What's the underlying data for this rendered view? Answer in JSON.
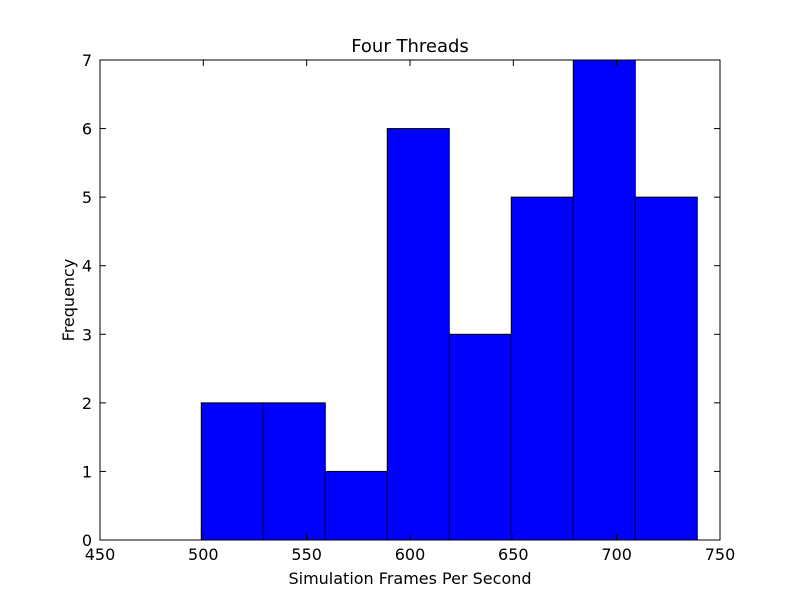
{
  "chart_data": {
    "type": "bar",
    "title": "Four Threads",
    "xlabel": "Simulation Frames Per Second",
    "ylabel": "Frequency",
    "xlim": [
      450,
      750
    ],
    "ylim": [
      0,
      7
    ],
    "xticks": [
      450,
      500,
      550,
      600,
      650,
      700,
      750
    ],
    "yticks": [
      0,
      1,
      2,
      3,
      4,
      5,
      6,
      7
    ],
    "bin_edges": [
      499,
      529,
      559,
      589,
      619,
      649,
      679,
      709,
      739
    ],
    "values": [
      2,
      2,
      1,
      6,
      3,
      5,
      7,
      5
    ],
    "bar_color": "#0000ff",
    "edge_color": "#000000",
    "grid": false,
    "legend": "none"
  }
}
